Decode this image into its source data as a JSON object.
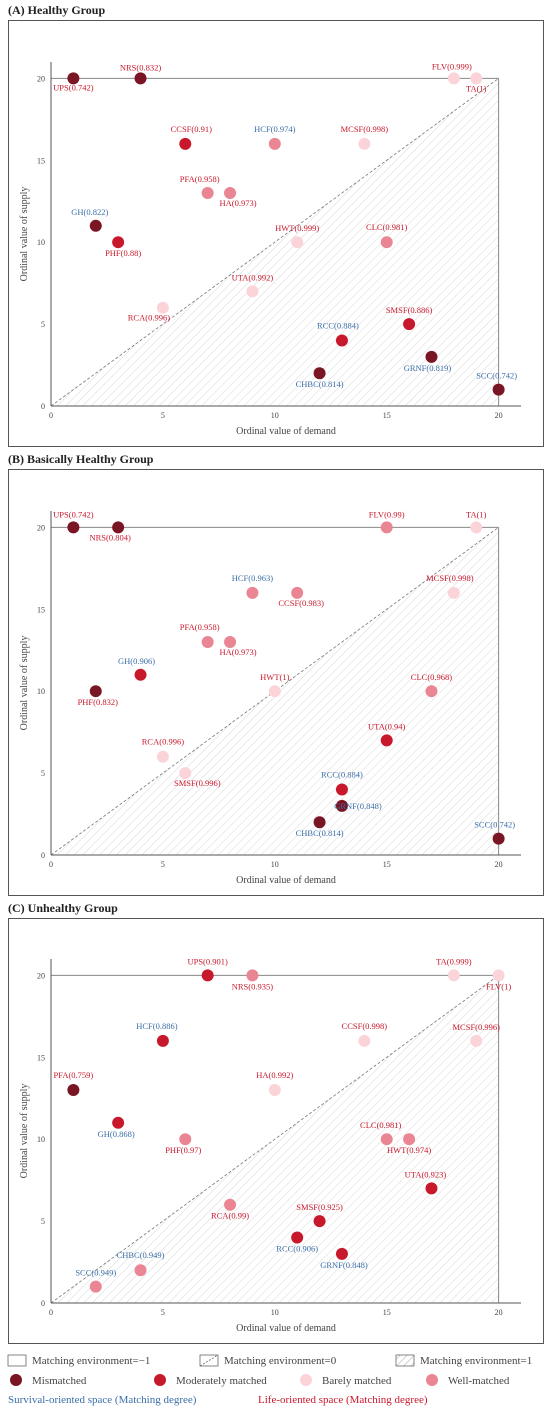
{
  "colors": {
    "mismatched": "#7a1523",
    "moderately": "#c8182c",
    "barely": "#fbd4d9",
    "well": "#ea8593",
    "survival_text": "#3a6ea8",
    "life_text": "#c8182c"
  },
  "chart_data": [
    {
      "type": "scatter",
      "title": "(A) Healthy Group",
      "xlabel": "Ordinal value of demand",
      "ylabel": "Ordinal value of supply",
      "xlim": [
        0,
        21
      ],
      "ylim": [
        0,
        21
      ],
      "xticks": [
        0,
        5,
        10,
        15,
        20
      ],
      "yticks": [
        0,
        5,
        10,
        15,
        20
      ],
      "points": [
        {
          "label": "UPS(0.742)",
          "x": 1,
          "y": 20,
          "cat": "mismatched",
          "space": "life"
        },
        {
          "label": "NRS(0.832)",
          "x": 4,
          "y": 20,
          "cat": "mismatched",
          "space": "life"
        },
        {
          "label": "FLV(0.999)",
          "x": 18,
          "y": 20,
          "cat": "barely",
          "space": "life"
        },
        {
          "label": "TA(1)",
          "x": 19,
          "y": 20,
          "cat": "barely",
          "space": "life"
        },
        {
          "label": "CCSF(0.91)",
          "x": 6,
          "y": 16,
          "cat": "moderately",
          "space": "life"
        },
        {
          "label": "HCF(0.974)",
          "x": 10,
          "y": 16,
          "cat": "well",
          "space": "survival"
        },
        {
          "label": "MCSF(0.998)",
          "x": 14,
          "y": 16,
          "cat": "barely",
          "space": "life"
        },
        {
          "label": "PFA(0.958)",
          "x": 7,
          "y": 13,
          "cat": "well",
          "space": "life"
        },
        {
          "label": "HA(0.973)",
          "x": 8,
          "y": 13,
          "cat": "well",
          "space": "life"
        },
        {
          "label": "GH(0.822)",
          "x": 2,
          "y": 11,
          "cat": "mismatched",
          "space": "survival"
        },
        {
          "label": "PHF(0.88)",
          "x": 3,
          "y": 10,
          "cat": "moderately",
          "space": "life"
        },
        {
          "label": "HWT(0.999)",
          "x": 11,
          "y": 10,
          "cat": "barely",
          "space": "life"
        },
        {
          "label": "CLC(0.981)",
          "x": 15,
          "y": 10,
          "cat": "well",
          "space": "life"
        },
        {
          "label": "UTA(0.992)",
          "x": 9,
          "y": 7,
          "cat": "barely",
          "space": "life"
        },
        {
          "label": "RCA(0.996)",
          "x": 5,
          "y": 6,
          "cat": "barely",
          "space": "life"
        },
        {
          "label": "SMSF(0.886)",
          "x": 16,
          "y": 5,
          "cat": "moderately",
          "space": "life"
        },
        {
          "label": "RCC(0.884)",
          "x": 13,
          "y": 4,
          "cat": "moderately",
          "space": "survival"
        },
        {
          "label": "GRNF(0.819)",
          "x": 17,
          "y": 3,
          "cat": "mismatched",
          "space": "survival"
        },
        {
          "label": "CHBC(0.814)",
          "x": 12,
          "y": 2,
          "cat": "mismatched",
          "space": "survival"
        },
        {
          "label": "SCC(0.742)",
          "x": 20,
          "y": 1,
          "cat": "mismatched",
          "space": "survival"
        }
      ]
    },
    {
      "type": "scatter",
      "title": "(B) Basically Healthy Group",
      "xlabel": "Ordinal value of demand",
      "ylabel": "Ordinal value of supply",
      "xlim": [
        0,
        21
      ],
      "ylim": [
        0,
        21
      ],
      "xticks": [
        0,
        5,
        10,
        15,
        20
      ],
      "yticks": [
        0,
        5,
        10,
        15,
        20
      ],
      "points": [
        {
          "label": "UPS(0.742)",
          "x": 1,
          "y": 20,
          "cat": "mismatched",
          "space": "life"
        },
        {
          "label": "NRS(0.804)",
          "x": 3,
          "y": 20,
          "cat": "mismatched",
          "space": "life"
        },
        {
          "label": "FLV(0.99)",
          "x": 15,
          "y": 20,
          "cat": "well",
          "space": "life"
        },
        {
          "label": "TA(1)",
          "x": 19,
          "y": 20,
          "cat": "barely",
          "space": "life"
        },
        {
          "label": "HCF(0.963)",
          "x": 9,
          "y": 16,
          "cat": "well",
          "space": "survival"
        },
        {
          "label": "CCSF(0.983)",
          "x": 11,
          "y": 16,
          "cat": "well",
          "space": "life"
        },
        {
          "label": "MCSF(0.998)",
          "x": 18,
          "y": 16,
          "cat": "barely",
          "space": "life"
        },
        {
          "label": "PFA(0.958)",
          "x": 7,
          "y": 13,
          "cat": "well",
          "space": "life"
        },
        {
          "label": "HA(0.973)",
          "x": 8,
          "y": 13,
          "cat": "well",
          "space": "life"
        },
        {
          "label": "GH(0.906)",
          "x": 4,
          "y": 11,
          "cat": "moderately",
          "space": "survival"
        },
        {
          "label": "PHF(0.832)",
          "x": 2,
          "y": 10,
          "cat": "mismatched",
          "space": "life"
        },
        {
          "label": "HWT(1)",
          "x": 10,
          "y": 10,
          "cat": "barely",
          "space": "life"
        },
        {
          "label": "CLC(0.968)",
          "x": 17,
          "y": 10,
          "cat": "well",
          "space": "life"
        },
        {
          "label": "UTA(0.94)",
          "x": 15,
          "y": 7,
          "cat": "moderately",
          "space": "life"
        },
        {
          "label": "RCA(0.996)",
          "x": 5,
          "y": 6,
          "cat": "barely",
          "space": "life"
        },
        {
          "label": "SMSF(0.996)",
          "x": 6,
          "y": 5,
          "cat": "barely",
          "space": "life"
        },
        {
          "label": "RCC(0.884)",
          "x": 13,
          "y": 4,
          "cat": "moderately",
          "space": "survival"
        },
        {
          "label": "GRNF(0.848)",
          "x": 13,
          "y": 3,
          "cat": "mismatched",
          "space": "survival"
        },
        {
          "label": "CHBC(0.814)",
          "x": 12,
          "y": 2,
          "cat": "mismatched",
          "space": "survival"
        },
        {
          "label": "SCC(0.742)",
          "x": 20,
          "y": 1,
          "cat": "mismatched",
          "space": "survival"
        }
      ]
    },
    {
      "type": "scatter",
      "title": "(C) Unhealthy Group",
      "xlabel": "Ordinal value of demand",
      "ylabel": "Ordinal value of supply",
      "xlim": [
        0,
        21
      ],
      "ylim": [
        0,
        21
      ],
      "xticks": [
        0,
        5,
        10,
        15,
        20
      ],
      "yticks": [
        0,
        5,
        10,
        15,
        20
      ],
      "points": [
        {
          "label": "UPS(0.901)",
          "x": 7,
          "y": 20,
          "cat": "moderately",
          "space": "life"
        },
        {
          "label": "NRS(0.935)",
          "x": 9,
          "y": 20,
          "cat": "well",
          "space": "life"
        },
        {
          "label": "TA(0.999)",
          "x": 18,
          "y": 20,
          "cat": "barely",
          "space": "life"
        },
        {
          "label": "FLV(1)",
          "x": 20,
          "y": 20,
          "cat": "barely",
          "space": "life"
        },
        {
          "label": "HCF(0.886)",
          "x": 5,
          "y": 16,
          "cat": "moderately",
          "space": "survival"
        },
        {
          "label": "CCSF(0.998)",
          "x": 14,
          "y": 16,
          "cat": "barely",
          "space": "life"
        },
        {
          "label": "MCSF(0.996)",
          "x": 19,
          "y": 16,
          "cat": "barely",
          "space": "life"
        },
        {
          "label": "PFA(0.759)",
          "x": 1,
          "y": 13,
          "cat": "mismatched",
          "space": "life"
        },
        {
          "label": "HA(0.992)",
          "x": 10,
          "y": 13,
          "cat": "barely",
          "space": "life"
        },
        {
          "label": "GH(0.868)",
          "x": 3,
          "y": 11,
          "cat": "moderately",
          "space": "survival"
        },
        {
          "label": "PHF(0.97)",
          "x": 6,
          "y": 10,
          "cat": "well",
          "space": "life"
        },
        {
          "label": "CLC(0.981)",
          "x": 15,
          "y": 10,
          "cat": "well",
          "space": "life"
        },
        {
          "label": "HWT(0.974)",
          "x": 16,
          "y": 10,
          "cat": "well",
          "space": "life"
        },
        {
          "label": "UTA(0.923)",
          "x": 17,
          "y": 7,
          "cat": "moderately",
          "space": "life"
        },
        {
          "label": "RCA(0.99)",
          "x": 8,
          "y": 6,
          "cat": "well",
          "space": "life"
        },
        {
          "label": "SMSF(0.925)",
          "x": 12,
          "y": 5,
          "cat": "moderately",
          "space": "life"
        },
        {
          "label": "RCC(0.906)",
          "x": 11,
          "y": 4,
          "cat": "moderately",
          "space": "survival"
        },
        {
          "label": "GRNF(0.848)",
          "x": 13,
          "y": 3,
          "cat": "moderately",
          "space": "survival"
        },
        {
          "label": "CHBC(0.949)",
          "x": 4,
          "y": 2,
          "cat": "well",
          "space": "survival"
        },
        {
          "label": "SCC(0.949)",
          "x": 2,
          "y": 1,
          "cat": "well",
          "space": "survival"
        }
      ]
    }
  ],
  "legend": {
    "env_minus1": "Matching environment=−1",
    "env_0": "Matching environment=0",
    "env_1": "Matching environment=1",
    "mismatched": "Mismatched",
    "moderately": "Moderately matched",
    "barely": "Barely matched",
    "well": "Well-matched",
    "survival": "Survival-oriented space (Matching degree)",
    "life": "Life-oriented space (Matching degree)"
  }
}
